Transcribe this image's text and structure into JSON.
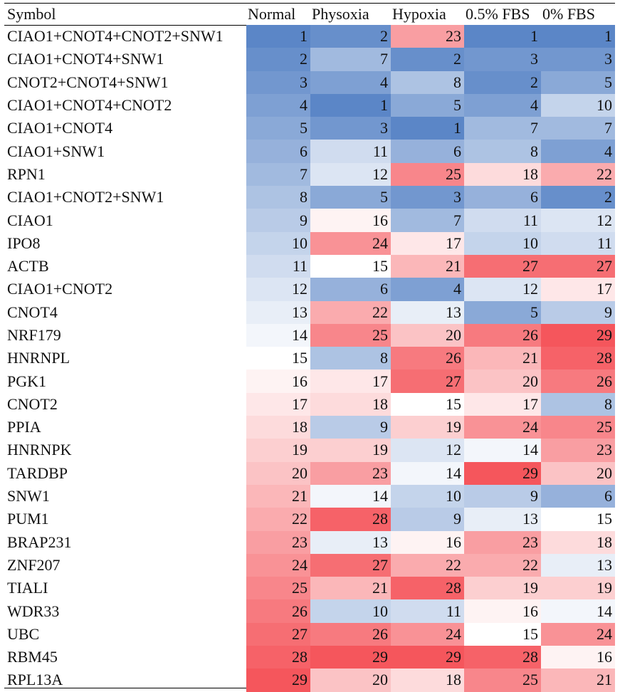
{
  "chart_data": {
    "type": "heatmap",
    "header": {
      "symbol": "Symbol",
      "columns": [
        "Normal",
        "Physoxia",
        "Hypoxia",
        "0.5% FBS",
        "0% FBS"
      ]
    },
    "rows": [
      {
        "symbol": "CIAO1+CNOT4+CNOT2+SNW1",
        "values": [
          1,
          2,
          23,
          1,
          1
        ]
      },
      {
        "symbol": "CIAO1+CNOT4+SNW1",
        "values": [
          2,
          7,
          2,
          3,
          3
        ]
      },
      {
        "symbol": "CNOT2+CNOT4+SNW1",
        "values": [
          3,
          4,
          8,
          2,
          5
        ]
      },
      {
        "symbol": "CIAO1+CNOT4+CNOT2",
        "values": [
          4,
          1,
          5,
          4,
          10
        ]
      },
      {
        "symbol": "CIAO1+CNOT4",
        "values": [
          5,
          3,
          1,
          7,
          7
        ]
      },
      {
        "symbol": "CIAO1+SNW1",
        "values": [
          6,
          11,
          6,
          8,
          4
        ]
      },
      {
        "symbol": "RPN1",
        "values": [
          7,
          12,
          25,
          18,
          22
        ]
      },
      {
        "symbol": "CIAO1+CNOT2+SNW1",
        "values": [
          8,
          5,
          3,
          6,
          2
        ]
      },
      {
        "symbol": "CIAO1",
        "values": [
          9,
          16,
          7,
          11,
          12
        ]
      },
      {
        "symbol": "IPO8",
        "values": [
          10,
          24,
          17,
          10,
          11
        ]
      },
      {
        "symbol": "ACTB",
        "values": [
          11,
          15,
          21,
          27,
          27
        ]
      },
      {
        "symbol": "CIAO1+CNOT2",
        "values": [
          12,
          6,
          4,
          12,
          17
        ]
      },
      {
        "symbol": "CNOT4",
        "values": [
          13,
          22,
          13,
          5,
          9
        ]
      },
      {
        "symbol": "NRF179",
        "values": [
          14,
          25,
          20,
          26,
          29
        ]
      },
      {
        "symbol": "HNRNPL",
        "values": [
          15,
          8,
          26,
          21,
          28
        ]
      },
      {
        "symbol": "PGK1",
        "values": [
          16,
          17,
          27,
          20,
          26
        ]
      },
      {
        "symbol": "CNOT2",
        "values": [
          17,
          18,
          15,
          17,
          8
        ]
      },
      {
        "symbol": "PPIA",
        "values": [
          18,
          9,
          19,
          24,
          25
        ]
      },
      {
        "symbol": "HNRNPK",
        "values": [
          19,
          19,
          12,
          14,
          23
        ]
      },
      {
        "symbol": "TARDBP",
        "values": [
          20,
          23,
          14,
          29,
          20
        ]
      },
      {
        "symbol": "SNW1",
        "values": [
          21,
          14,
          10,
          9,
          6
        ]
      },
      {
        "symbol": "PUM1",
        "values": [
          22,
          28,
          9,
          13,
          15
        ]
      },
      {
        "symbol": "BRAP231",
        "values": [
          23,
          13,
          16,
          23,
          18
        ]
      },
      {
        "symbol": "ZNF207",
        "values": [
          24,
          27,
          22,
          22,
          13
        ]
      },
      {
        "symbol": "TIALI",
        "values": [
          25,
          21,
          28,
          19,
          19
        ]
      },
      {
        "symbol": "WDR33",
        "values": [
          26,
          10,
          11,
          16,
          14
        ]
      },
      {
        "symbol": "UBC",
        "values": [
          27,
          26,
          24,
          15,
          24
        ]
      },
      {
        "symbol": "RBM45",
        "values": [
          28,
          29,
          29,
          28,
          16
        ]
      },
      {
        "symbol": "RPL13A",
        "values": [
          29,
          20,
          18,
          25,
          21
        ]
      }
    ],
    "value_range": [
      1,
      29
    ],
    "color_scale": {
      "low": "#5b86c7",
      "mid": "#ffffff",
      "high": "#f5565c"
    },
    "grid": false
  }
}
